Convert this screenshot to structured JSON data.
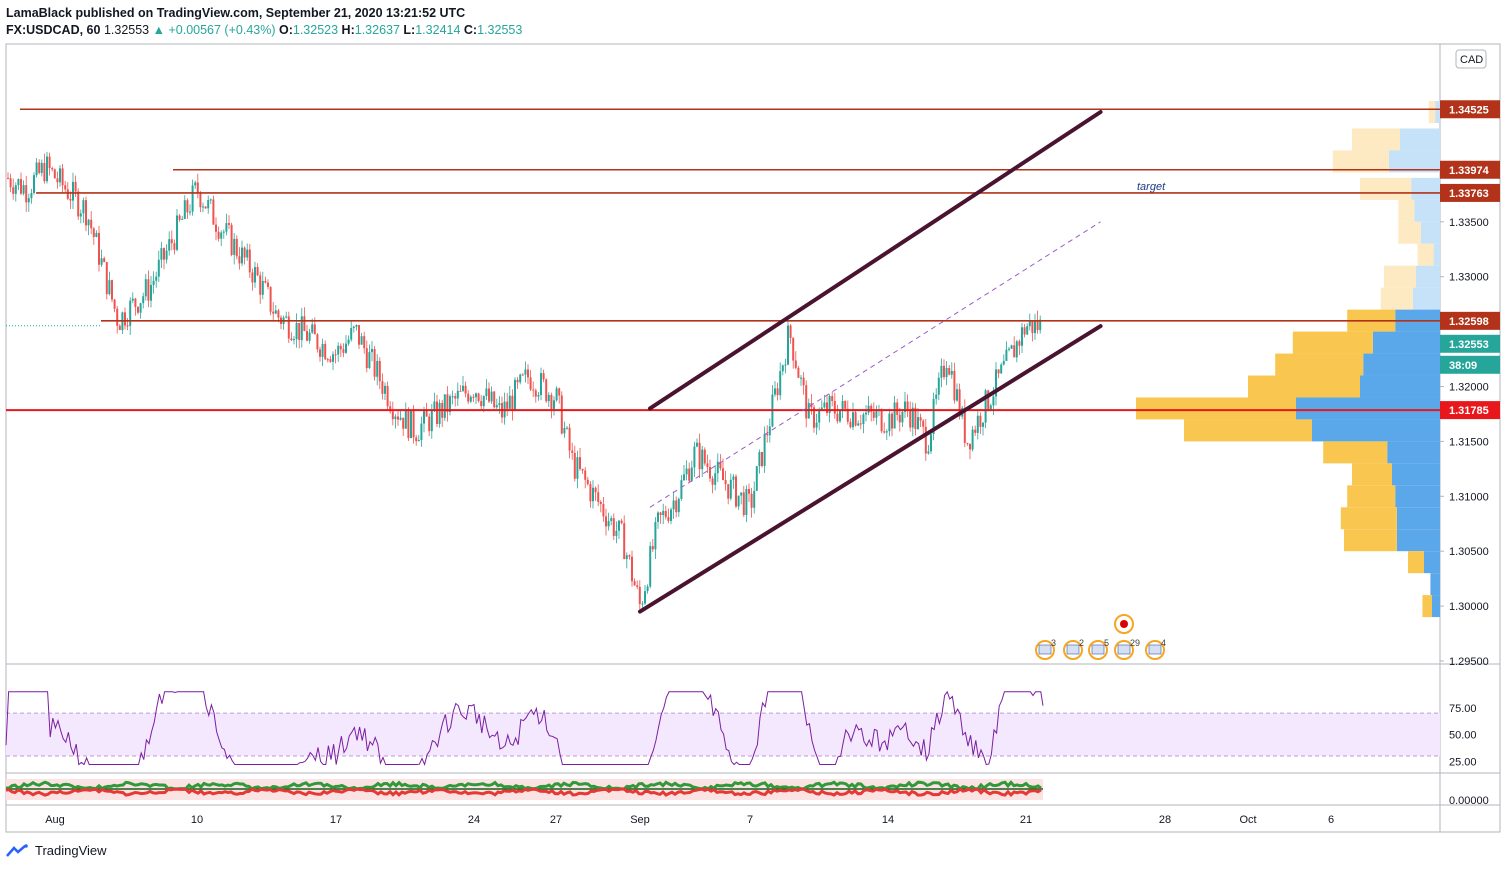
{
  "header": {
    "publisher_line": "LamaBlack published on TradingView.com, September 21, 2020 13:21:52 UTC",
    "symbol": "FX:USDCAD, 60",
    "last": "1.32553",
    "change": "▲ +0.00567 (+0.43%)",
    "o_label": "O:",
    "o": "1.32523",
    "h_label": "H:",
    "h": "1.32637",
    "l_label": "L:",
    "l": "1.32414",
    "c_label": "C:",
    "c": "1.32553"
  },
  "footer": {
    "brand": "TradingView"
  },
  "colors": {
    "up": "#26a69a",
    "down": "#ef5350",
    "level": "#b2321a",
    "support": "#e8171b",
    "channel": "#4a1330",
    "midline": "#9c5cc8",
    "rsi": "#7b1fa2",
    "vol_up": "#f9c74f",
    "vol_down": "#5aa8ea"
  },
  "chart_data": [
    {
      "type": "line",
      "title": "",
      "instrument": "FX:USDCAD",
      "interval": "60",
      "x_labels": [
        "Aug",
        "10",
        "17",
        "24",
        "27",
        "Sep",
        "7",
        "14",
        "21",
        "28",
        "Oct",
        "6"
      ],
      "y_axis_ticks": [
        "1.33500",
        "1.33000",
        "1.32000",
        "1.31500",
        "1.31000",
        "1.30500",
        "1.30000",
        "1.29500"
      ],
      "ylim": [
        1.295,
        1.35
      ],
      "currency_badge": "CAD",
      "close_series": {
        "name": "",
        "points": [
          [
            "Jul 27",
            1.339
          ],
          [
            "Jul 29",
            1.338
          ],
          [
            "Jul 31",
            1.34
          ],
          [
            "Aug 3",
            1.336
          ],
          [
            "Aug 5",
            1.326
          ],
          [
            "Aug 7",
            1.329
          ],
          [
            "Aug 10",
            1.338
          ],
          [
            "Aug 11",
            1.335
          ],
          [
            "Aug 13",
            1.33
          ],
          [
            "Aug 14",
            1.3265
          ],
          [
            "Aug 17",
            1.323
          ],
          [
            "Aug 18",
            1.325
          ],
          [
            "Aug 20",
            1.318
          ],
          [
            "Aug 21",
            1.316
          ],
          [
            "Aug 24",
            1.32
          ],
          [
            "Aug 25",
            1.3175
          ],
          [
            "Aug 26",
            1.321
          ],
          [
            "Aug 27",
            1.319
          ],
          [
            "Aug 28",
            1.313
          ],
          [
            "Aug 31",
            1.306
          ],
          [
            "Sep 1",
            1.3
          ],
          [
            "Sep 2",
            1.3075
          ],
          [
            "Sep 3",
            1.31
          ],
          [
            "Sep 4",
            1.314
          ],
          [
            "Sep 7",
            1.309
          ],
          [
            "Sep 8",
            1.317
          ],
          [
            "Sep 9",
            1.325
          ],
          [
            "Sep 10",
            1.317
          ],
          [
            "Sep 11",
            1.318
          ],
          [
            "Sep 14",
            1.317
          ],
          [
            "Sep 15",
            1.318
          ],
          [
            "Sep 16",
            1.315
          ],
          [
            "Sep 17",
            1.323
          ],
          [
            "Sep 18",
            1.315
          ],
          [
            "Sep 21",
            1.32553
          ]
        ]
      },
      "horizontal_levels": [
        {
          "value": 1.34525,
          "label": "1.34525"
        },
        {
          "value": 1.33974,
          "label": "1.33974"
        },
        {
          "value": 1.33763,
          "label": "1.33763"
        },
        {
          "value": 1.32598,
          "label": "1.32598"
        },
        {
          "value": 1.31785,
          "label": "1.31785"
        }
      ],
      "current_price": {
        "value": 1.32553,
        "label": "1.32553",
        "countdown": "38:09"
      },
      "annotations": [
        {
          "text": "target"
        }
      ],
      "channel": {
        "upper": [
          [
            "Sep 1",
            1.318
          ],
          [
            "Sep 24",
            1.345
          ]
        ],
        "lower": [
          [
            "Sep 1",
            1.2995
          ],
          [
            "Sep 24",
            1.3255
          ]
        ],
        "mid": [
          [
            "Sep 1",
            1.309
          ],
          [
            "Sep 24",
            1.335
          ]
        ]
      },
      "volume_profile": [
        {
          "price": 1.345,
          "up": 0.4,
          "down": 0.3
        },
        {
          "price": 1.3425,
          "up": 3.0,
          "down": 2.5
        },
        {
          "price": 1.3405,
          "up": 3.5,
          "down": 3.2
        },
        {
          "price": 1.338,
          "up": 3.2,
          "down": 1.8
        },
        {
          "price": 1.336,
          "up": 1.0,
          "down": 1.6
        },
        {
          "price": 1.334,
          "up": 1.4,
          "down": 1.2
        },
        {
          "price": 1.332,
          "up": 1.0,
          "down": 0.4
        },
        {
          "price": 1.33,
          "up": 2.0,
          "down": 1.5
        },
        {
          "price": 1.328,
          "up": 2.0,
          "down": 1.7
        },
        {
          "price": 1.326,
          "up": 3.0,
          "down": 2.8
        },
        {
          "price": 1.324,
          "up": 5.0,
          "down": 4.2
        },
        {
          "price": 1.322,
          "up": 5.5,
          "down": 4.8
        },
        {
          "price": 1.32,
          "up": 7.0,
          "down": 5.0
        },
        {
          "price": 1.318,
          "up": 10.0,
          "down": 9.0
        },
        {
          "price": 1.316,
          "up": 8.0,
          "down": 8.0
        },
        {
          "price": 1.314,
          "up": 4.0,
          "down": 3.3
        },
        {
          "price": 1.312,
          "up": 2.5,
          "down": 3.0
        },
        {
          "price": 1.31,
          "up": 3.0,
          "down": 2.8
        },
        {
          "price": 1.308,
          "up": 3.5,
          "down": 2.7
        },
        {
          "price": 1.306,
          "up": 3.3,
          "down": 2.7
        },
        {
          "price": 1.304,
          "up": 1.0,
          "down": 1.0
        },
        {
          "price": 1.302,
          "up": 0.0,
          "down": 0.6
        },
        {
          "price": 1.3,
          "up": 0.6,
          "down": 0.5
        }
      ],
      "event_markers": [
        "3",
        "2",
        "5",
        "29",
        "4"
      ]
    },
    {
      "type": "line",
      "title": "",
      "indicator": "RSI",
      "y_axis_ticks": [
        "75.00",
        "50.00",
        "25.00"
      ],
      "ylim": [
        15,
        95
      ],
      "band": [
        30,
        70
      ],
      "last_value": 77
    },
    {
      "type": "line",
      "title": "",
      "indicator": "oscillator",
      "y_axis_ticks": [
        "0.00000"
      ],
      "series": [
        {
          "color": "green"
        },
        {
          "color": "red"
        }
      ]
    }
  ]
}
